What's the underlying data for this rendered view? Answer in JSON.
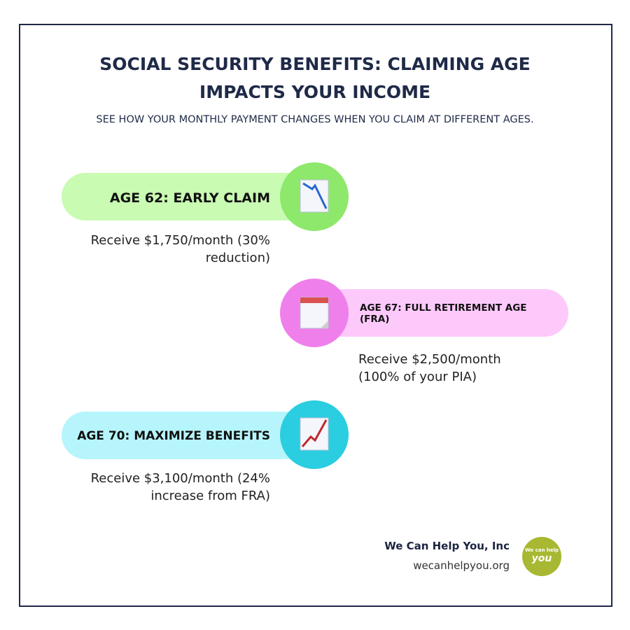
{
  "header": {
    "title": "SOCIAL SECURITY BENEFITS: CLAIMING AGE IMPACTS YOUR INCOME",
    "subtitle": "SEE HOW YOUR MONTHLY PAYMENT CHANGES WHEN YOU CLAIM AT DIFFERENT AGES."
  },
  "items": [
    {
      "label": "AGE 62: EARLY CLAIM",
      "description": "Receive $1,750/month (30% reduction)"
    },
    {
      "label": "AGE 67: FULL RETIREMENT AGE (FRA)",
      "description": "Receive $2,500/month (100% of your PIA)"
    },
    {
      "label": "AGE 70: MAXIMIZE BENEFITS",
      "description": "Receive $3,100/month (24% increase from FRA)"
    }
  ],
  "footer": {
    "company": "We Can Help You, Inc",
    "website": "wecanhelpyou.org",
    "logo_top": "We can help",
    "logo_bottom": "you"
  }
}
